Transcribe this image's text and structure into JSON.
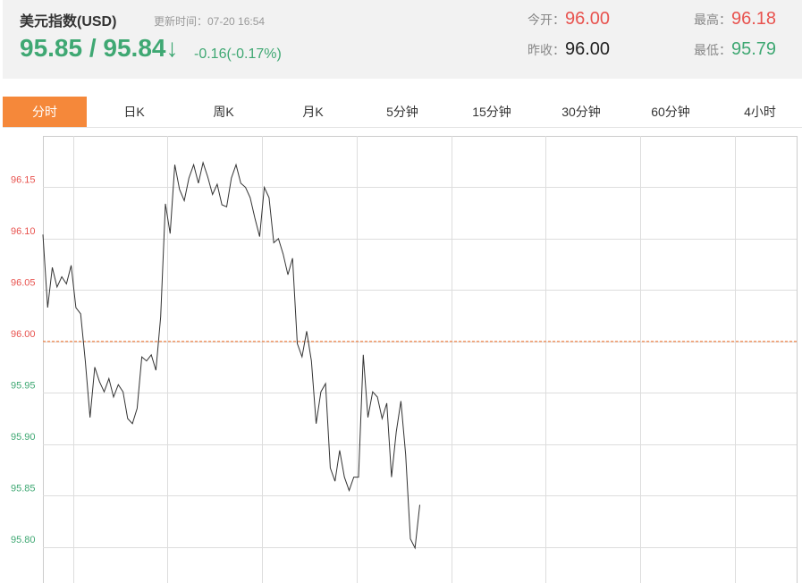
{
  "header": {
    "title": "美元指数(USD)",
    "update": "更新时间：07-20 16:54",
    "price": "95.85 / 95.84↓",
    "change": "-0.16(-0.17%)",
    "price_color": "#3fa873",
    "stats": [
      {
        "label": "今开：",
        "value": "96.00",
        "color": "#e8534f"
      },
      {
        "label": "最高：",
        "value": "96.18",
        "color": "#e8534f"
      },
      {
        "label": "昨收：",
        "value": "96.00",
        "color": "#222222"
      },
      {
        "label": "最低：",
        "value": "95.79",
        "color": "#3fa873"
      }
    ]
  },
  "tabs": [
    "分时",
    "日K",
    "周K",
    "月K",
    "5分钟",
    "15分钟",
    "30分钟",
    "60分钟",
    "4小时"
  ],
  "active_tab": 0,
  "chart_data": {
    "type": "line",
    "color": "#333333",
    "values": [
      96.104,
      96.033,
      96.072,
      96.053,
      96.063,
      96.056,
      96.074,
      96.033,
      96.027,
      95.981,
      95.926,
      95.975,
      95.961,
      95.951,
      95.964,
      95.946,
      95.958,
      95.951,
      95.925,
      95.92,
      95.935,
      95.985,
      95.981,
      95.987,
      95.972,
      96.024,
      96.134,
      96.105,
      96.172,
      96.148,
      96.137,
      96.159,
      96.172,
      96.154,
      96.174,
      96.16,
      96.143,
      96.153,
      96.133,
      96.131,
      96.159,
      96.172,
      96.154,
      96.15,
      96.14,
      96.12,
      96.102,
      96.15,
      96.14,
      96.096,
      96.1,
      96.085,
      96.065,
      96.081,
      95.998,
      95.985,
      96.01,
      95.981,
      95.92,
      95.951,
      95.959,
      95.877,
      95.864,
      95.894,
      95.868,
      95.855,
      95.868,
      95.868,
      95.987,
      95.926,
      95.951,
      95.946,
      95.925,
      95.94,
      95.868,
      95.912,
      95.942,
      95.89,
      95.808,
      95.799,
      95.841
    ],
    "xlim": [
      0,
      160
    ],
    "ylim": [
      95.765,
      96.2
    ],
    "yticks": [
      96.15,
      {
        "value": 96.1,
        "label": "96.10"
      },
      96.05,
      {
        "value": 96,
        "label": "96.00"
      },
      95.95,
      {
        "value": 95.9,
        "label": "95.90"
      },
      95.85,
      {
        "value": 95.8,
        "label": "95.80"
      }
    ],
    "grid": true,
    "baseline": 96,
    "baseline_color": "#f26b21",
    "up_color": "#e8534f",
    "down_color": "#3fa873"
  }
}
